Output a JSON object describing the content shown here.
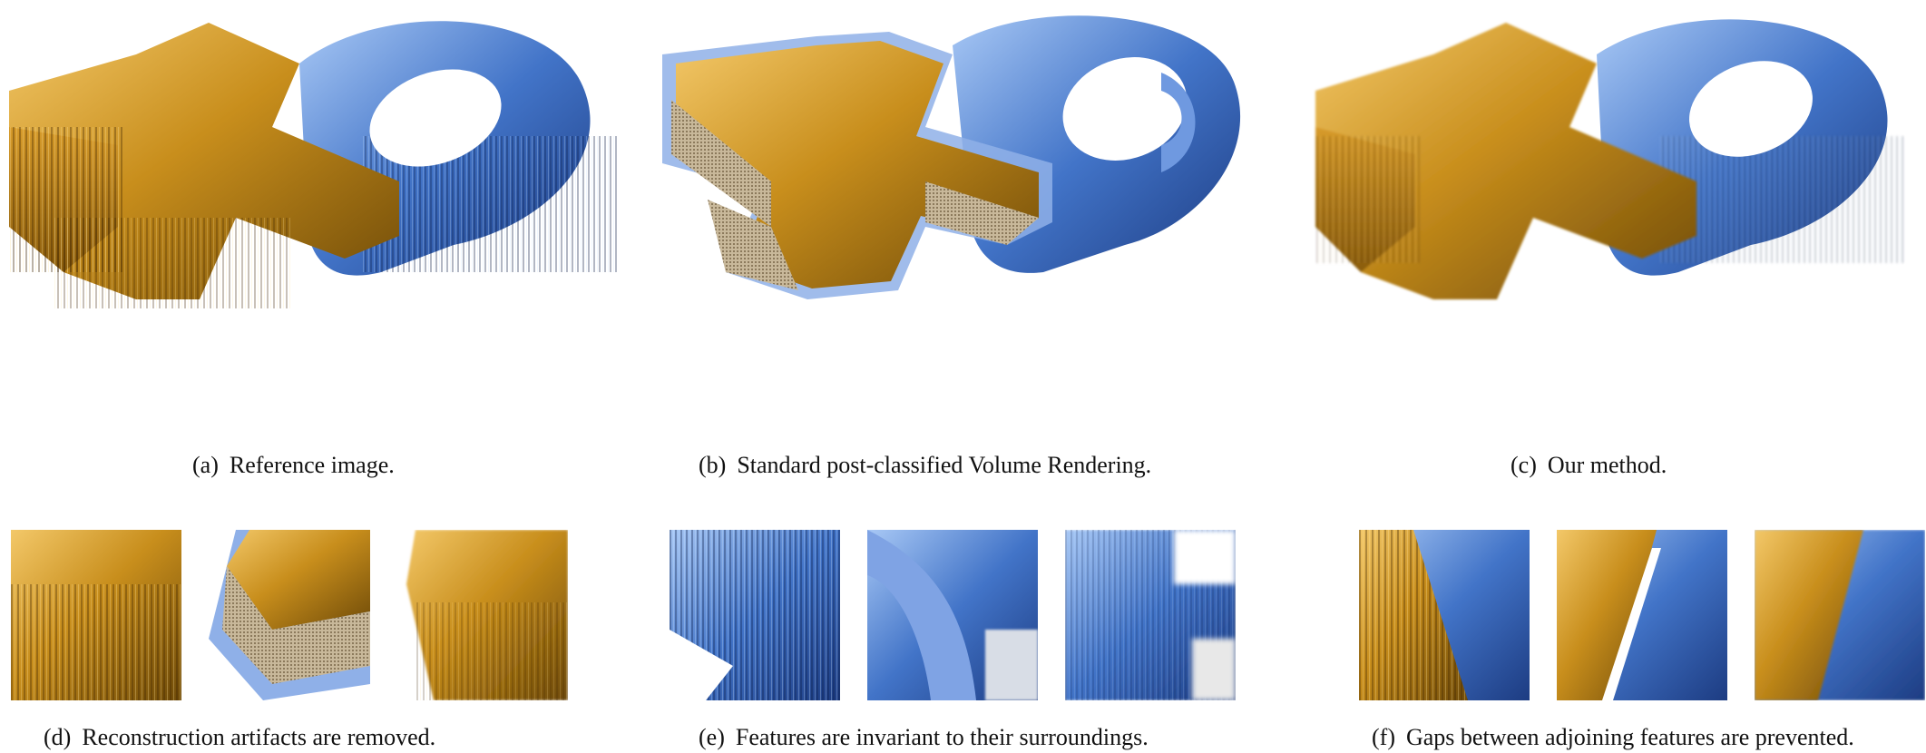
{
  "figure": {
    "top_row": [
      {
        "id": "a",
        "label": "(a)",
        "caption": "Reference image."
      },
      {
        "id": "b",
        "label": "(b)",
        "caption": "Standard post-classified Volume Rendering."
      },
      {
        "id": "c",
        "label": "(c)",
        "caption": "Our method."
      }
    ],
    "bottom_row": [
      {
        "id": "d",
        "label": "(d)",
        "caption": "Reconstruction artifacts are removed."
      },
      {
        "id": "e",
        "label": "(e)",
        "caption": "Features are invariant to their surroundings."
      },
      {
        "id": "f",
        "label": "(f)",
        "caption": "Gaps between adjoining features are prevented."
      }
    ]
  },
  "colors": {
    "gold": "#c8901e",
    "gold_light": "#f0c660",
    "gold_dark": "#7a5208",
    "blue": "#3e6fc4",
    "blue_light": "#9fc2f2",
    "blue_dark": "#1f3f86"
  }
}
